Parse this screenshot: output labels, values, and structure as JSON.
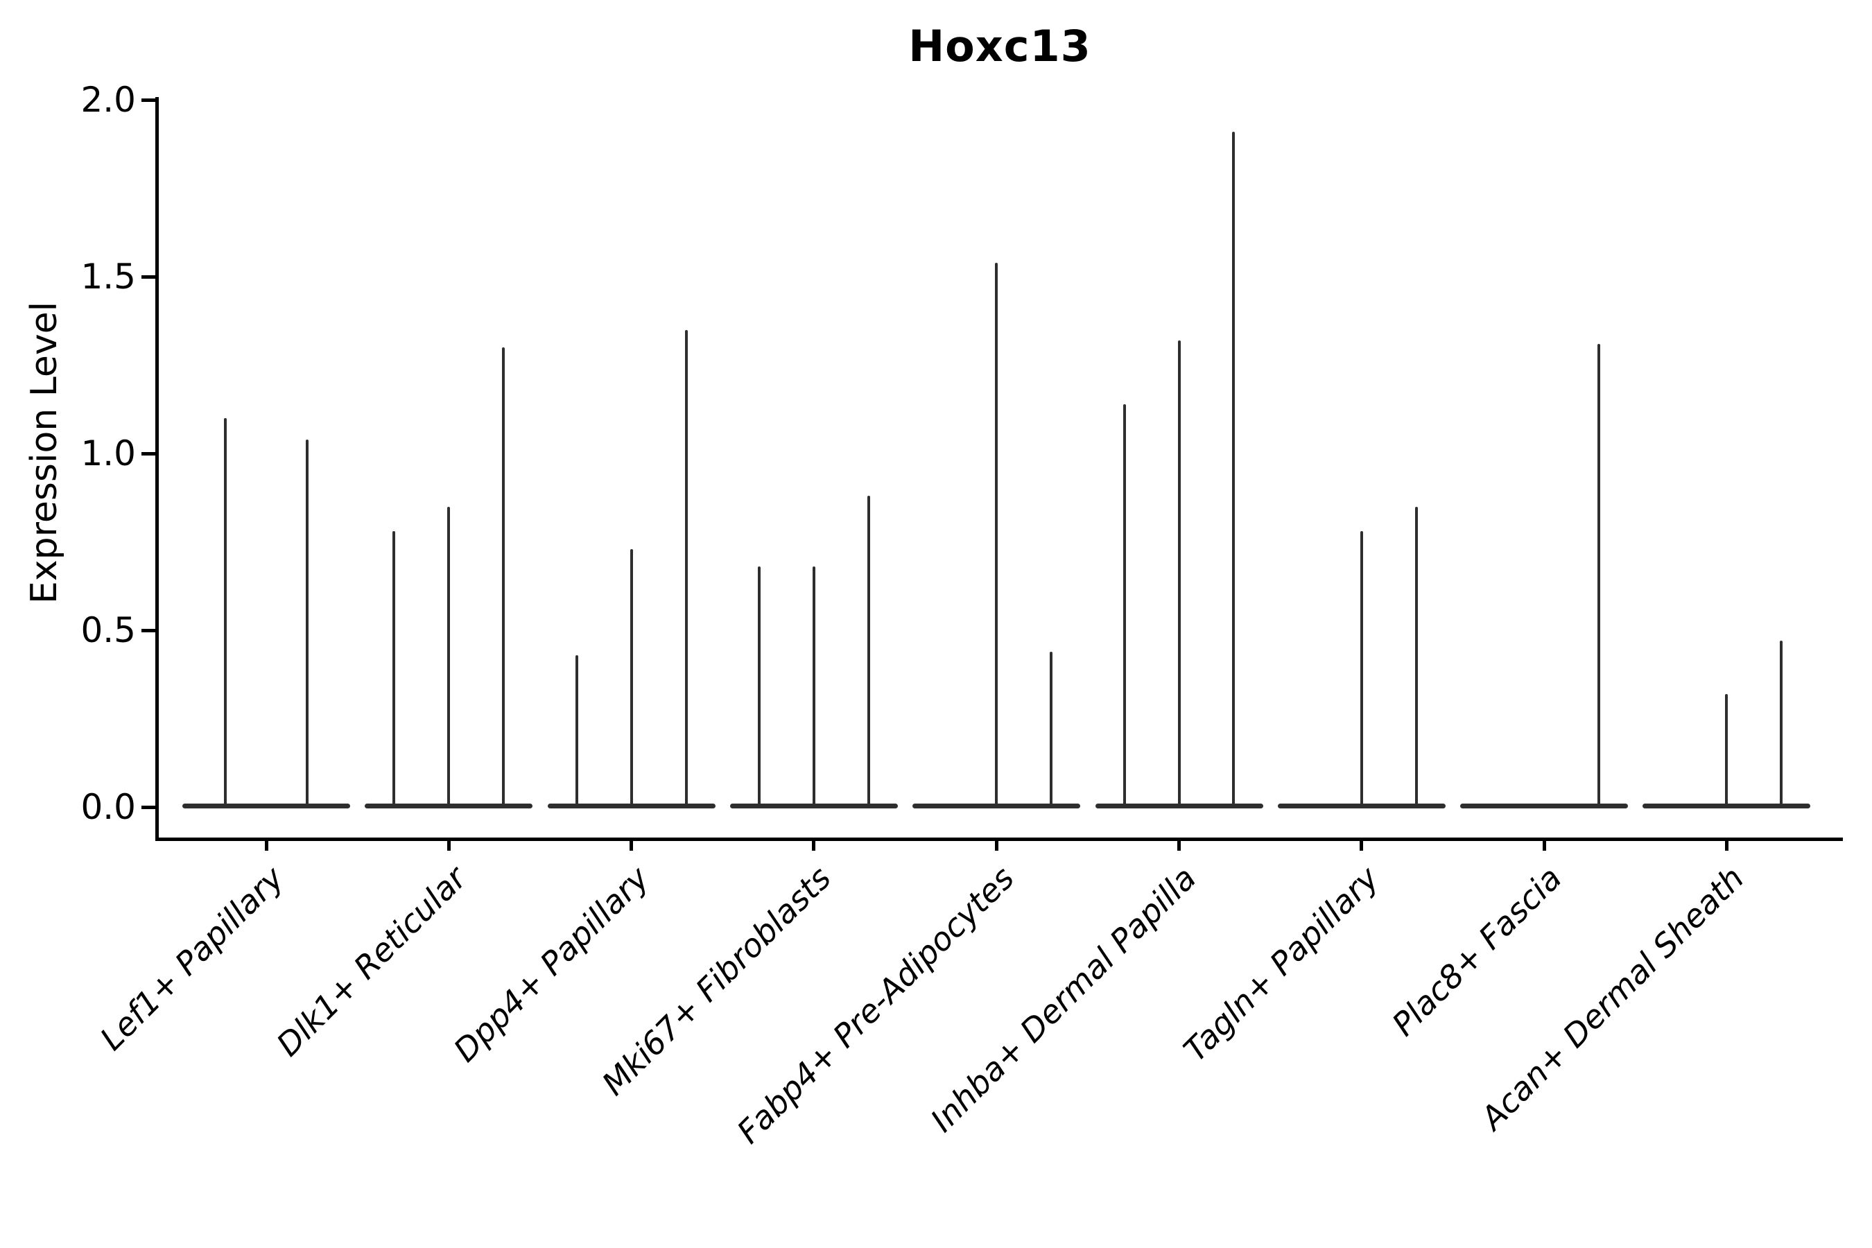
{
  "chart_data": {
    "type": "violin",
    "title": "Hoxc13",
    "ylabel": "Expression Level",
    "xlabel": "",
    "ylim": [
      0.0,
      2.0
    ],
    "yticks": [
      0.0,
      0.5,
      1.0,
      1.5,
      2.0
    ],
    "ytick_labels": [
      "0.0",
      "0.5",
      "1.0",
      "1.5",
      "2.0"
    ],
    "grid": false,
    "legend": "none",
    "description": "Dodged thin violin plot of gene expression; each category holds 2-3 collapsed violins (flat zero-density base with a thin spike up to the max expression value). Violin pos is the offset from the category center in category-width units; max is the spike top in expression units (0 = flat violin, no spike).",
    "categories": [
      {
        "label": "Lef1+ Papillary",
        "violins": [
          {
            "pos": -0.225,
            "max": 1.1
          },
          {
            "pos": 0.225,
            "max": 1.04
          }
        ]
      },
      {
        "label": "Dlk1+ Reticular",
        "violins": [
          {
            "pos": -0.3,
            "max": 0.78
          },
          {
            "pos": 0,
            "max": 0.85
          },
          {
            "pos": 0.3,
            "max": 1.3
          }
        ]
      },
      {
        "label": "Dpp4+ Papillary",
        "violins": [
          {
            "pos": -0.3,
            "max": 0.43
          },
          {
            "pos": 0,
            "max": 0.73
          },
          {
            "pos": 0.3,
            "max": 1.35
          }
        ]
      },
      {
        "label": "Mki67+ Fibroblasts",
        "violins": [
          {
            "pos": -0.3,
            "max": 0.68
          },
          {
            "pos": 0,
            "max": 0.68
          },
          {
            "pos": 0.3,
            "max": 0.88
          }
        ]
      },
      {
        "label": "Fabp4+ Pre-Adipocytes",
        "violins": [
          {
            "pos": -0.3,
            "max": 0
          },
          {
            "pos": 0,
            "max": 1.54
          },
          {
            "pos": 0.3,
            "max": 0.44
          }
        ]
      },
      {
        "label": "Inhba+ Dermal Papilla",
        "violins": [
          {
            "pos": -0.3,
            "max": 1.14
          },
          {
            "pos": 0,
            "max": 1.32
          },
          {
            "pos": 0.3,
            "max": 1.91
          }
        ]
      },
      {
        "label": "Tagln+ Papillary",
        "violins": [
          {
            "pos": -0.3,
            "max": 0
          },
          {
            "pos": 0,
            "max": 0.78
          },
          {
            "pos": 0.3,
            "max": 0.85
          }
        ]
      },
      {
        "label": "Plac8+ Fascia",
        "violins": [
          {
            "pos": -0.3,
            "max": 0
          },
          {
            "pos": 0,
            "max": 0
          },
          {
            "pos": 0.3,
            "max": 1.31
          }
        ]
      },
      {
        "label": "Acan+ Dermal Sheath",
        "violins": [
          {
            "pos": -0.3,
            "max": 0
          },
          {
            "pos": 0,
            "max": 0.32
          },
          {
            "pos": 0.3,
            "max": 0.47
          }
        ]
      }
    ]
  },
  "colors": {
    "violin": "#2e2e2e",
    "axis": "#000000",
    "text": "#000000",
    "background": "#ffffff"
  }
}
